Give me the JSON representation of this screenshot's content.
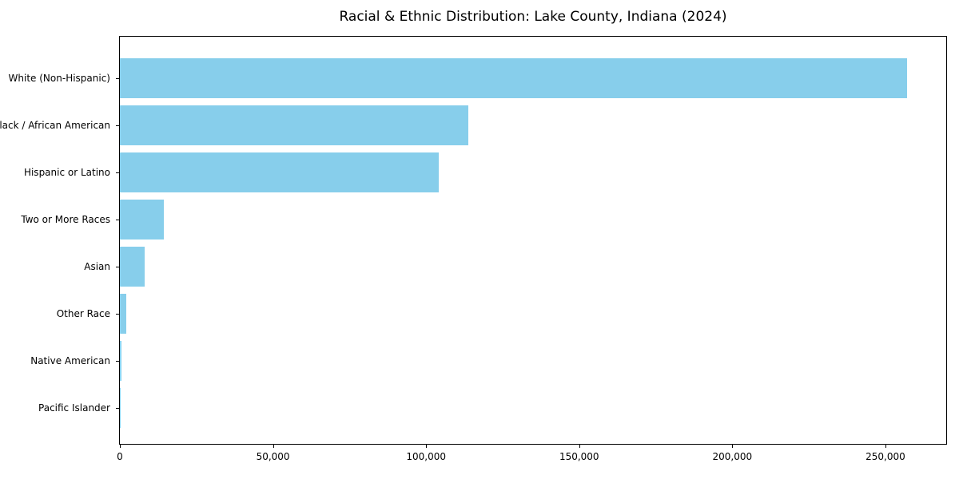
{
  "figure": {
    "background": "#ffffff",
    "text_color": "#000000",
    "spine_color": "#000000"
  },
  "chart_data": {
    "type": "bar",
    "orientation": "horizontal",
    "title": "Racial & Ethnic Distribution: Lake County, Indiana (2024)",
    "categories": [
      "White (Non-Hispanic)",
      "Black / African American",
      "Hispanic or Latino",
      "Two or More Races",
      "Asian",
      "Other Race",
      "Native American",
      "Pacific Islander"
    ],
    "values": [
      257000,
      113700,
      104200,
      14300,
      8000,
      2100,
      400,
      100
    ],
    "bar_color": "#87CEEB",
    "xlabel": "",
    "ylabel": "",
    "xlim": [
      0,
      269850
    ],
    "x_ticks": [
      0,
      50000,
      100000,
      150000,
      200000,
      250000
    ],
    "x_tick_labels": [
      "0",
      "50,000",
      "100,000",
      "150,000",
      "200,000",
      "250,000"
    ],
    "grid": false,
    "legend": null,
    "value_labels_shown": false
  }
}
